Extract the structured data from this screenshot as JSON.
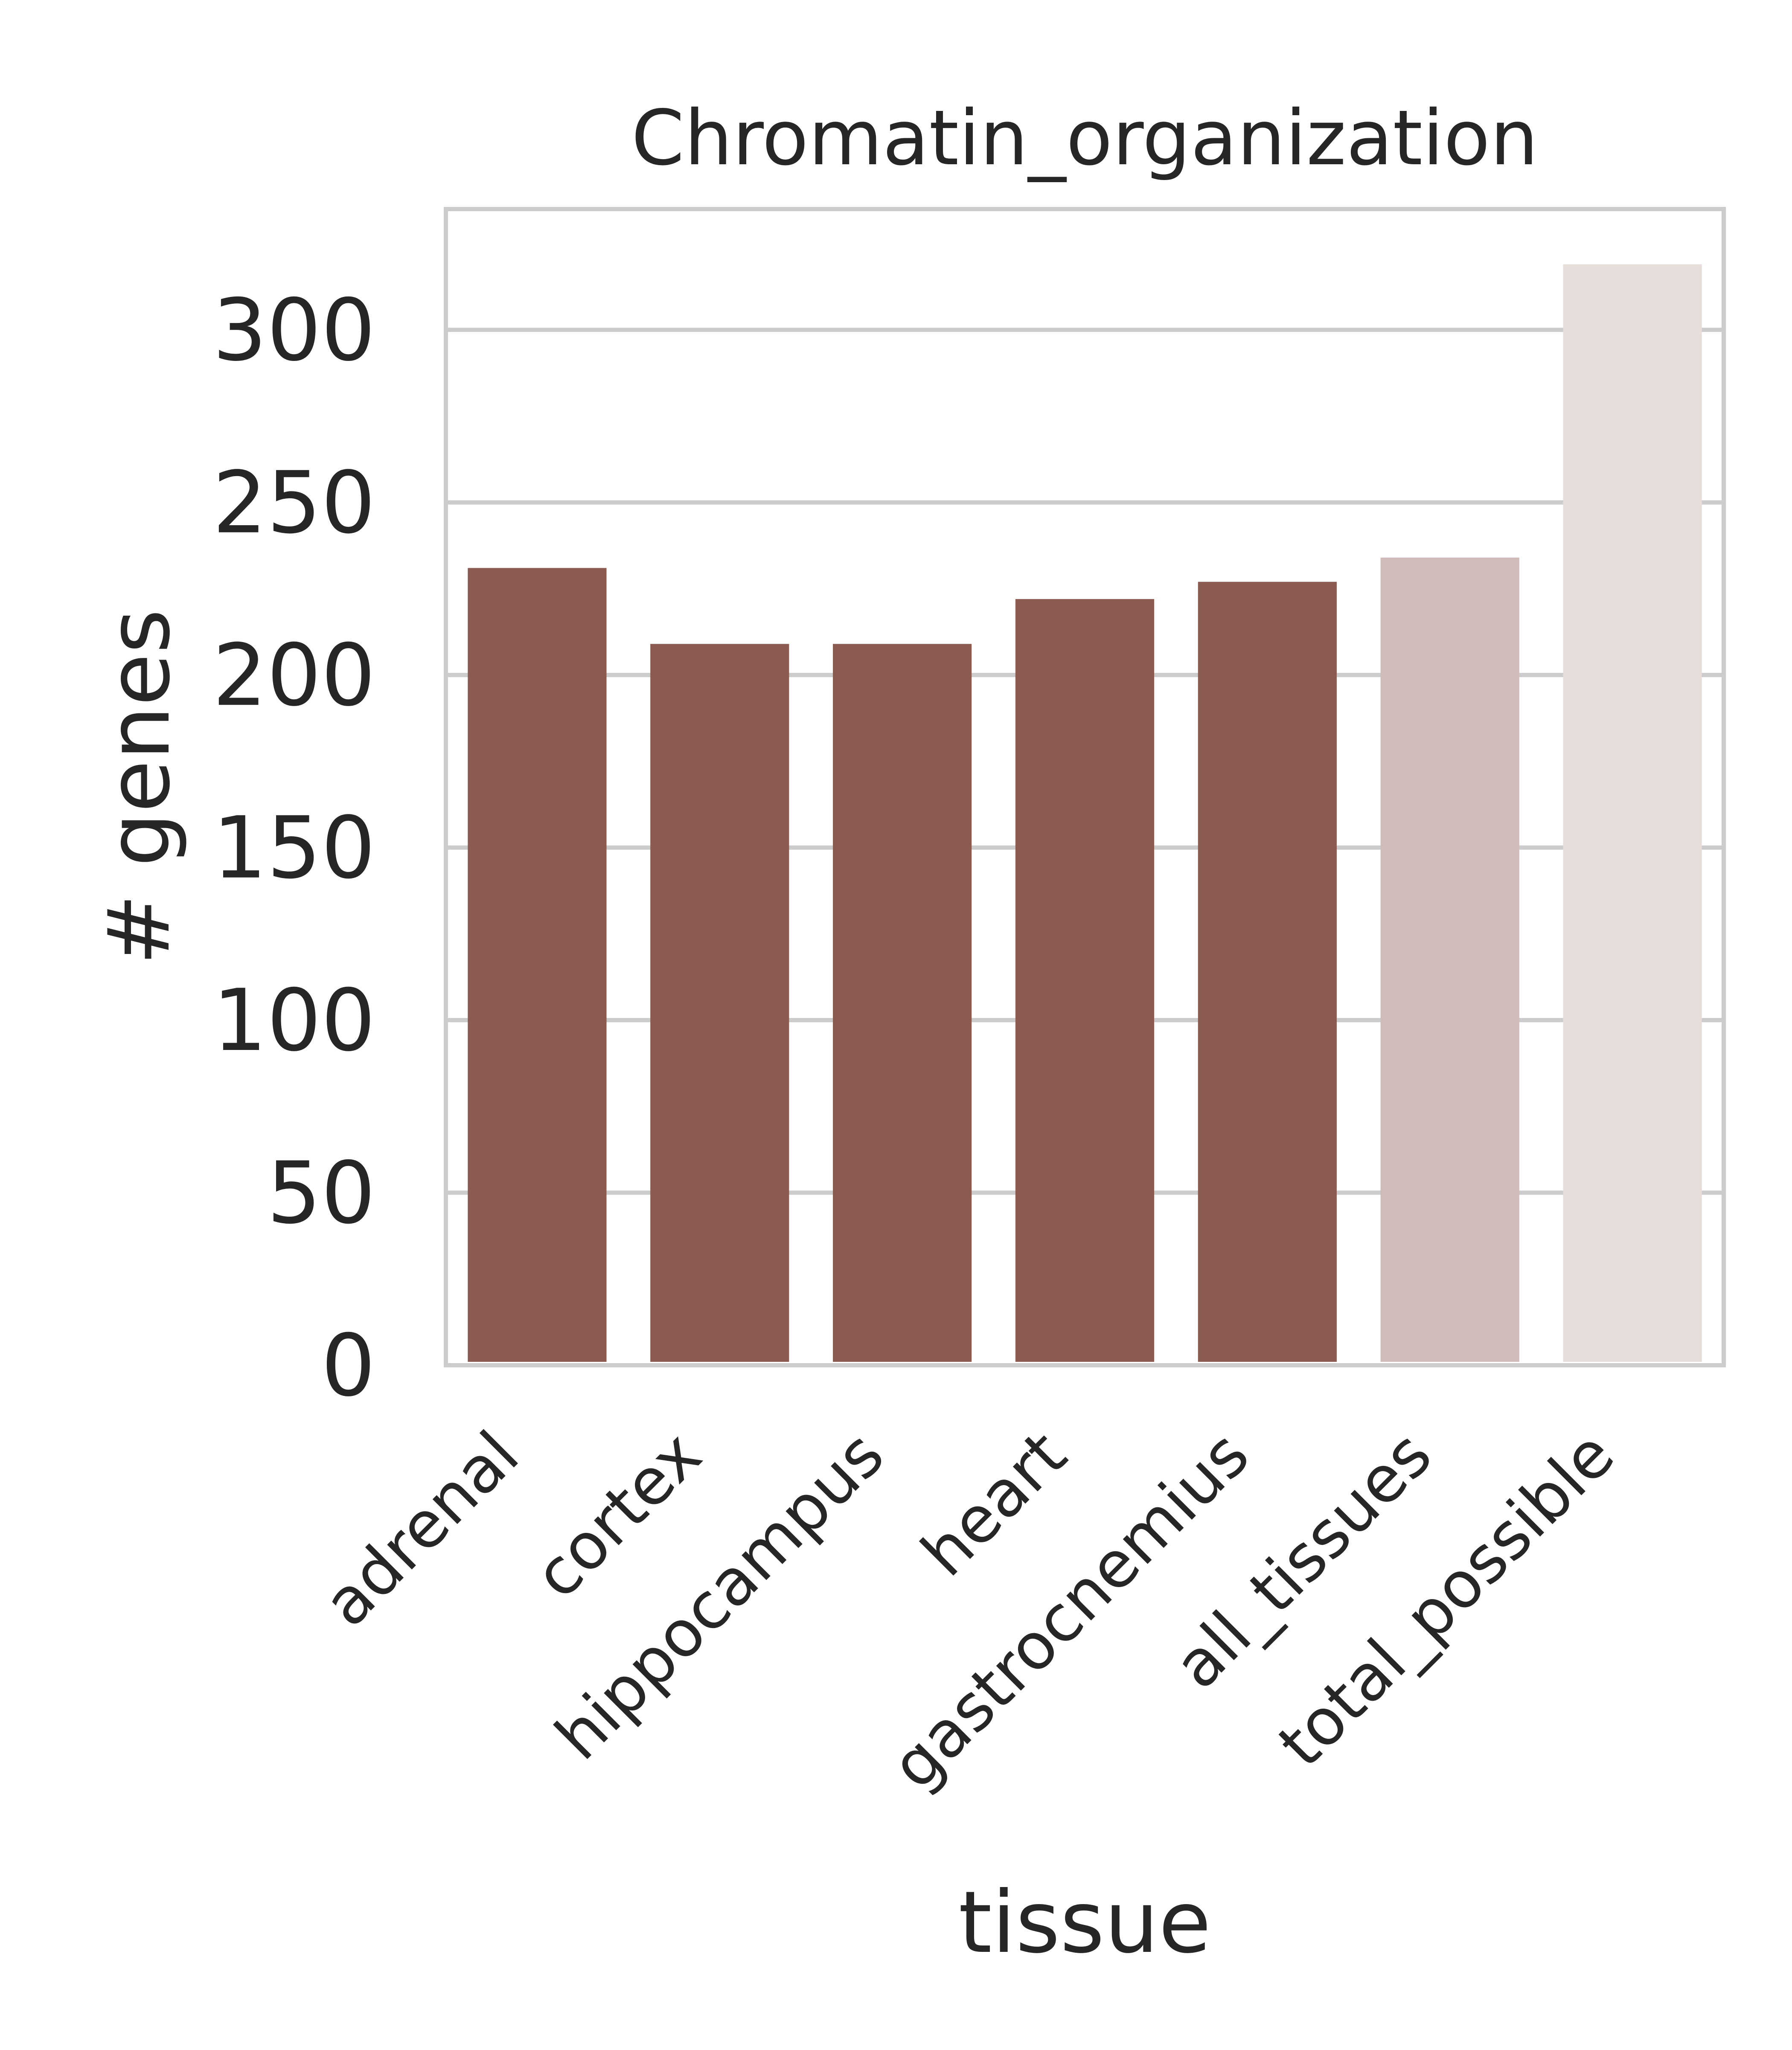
{
  "chart_data": {
    "type": "bar",
    "title": "Chromatin_organization",
    "xlabel": "tissue",
    "ylabel": "# genes",
    "categories": [
      "adrenal",
      "cortex",
      "hippocampus",
      "heart",
      "gastrocnemius",
      "all_tissues",
      "total_possible"
    ],
    "values": [
      231,
      209,
      209,
      222,
      227,
      234,
      319
    ],
    "bar_colors": [
      "#8b5a51",
      "#8b5a51",
      "#8b5a51",
      "#8b5a51",
      "#8b5a51",
      "#cfbcb8",
      "#e7dddb"
    ],
    "ylim": [
      0,
      335
    ],
    "yticks": [
      0,
      50,
      100,
      150,
      200,
      250,
      300
    ],
    "grid": true,
    "grid_color": "#cccccc",
    "spine_color": "#cccccc"
  }
}
